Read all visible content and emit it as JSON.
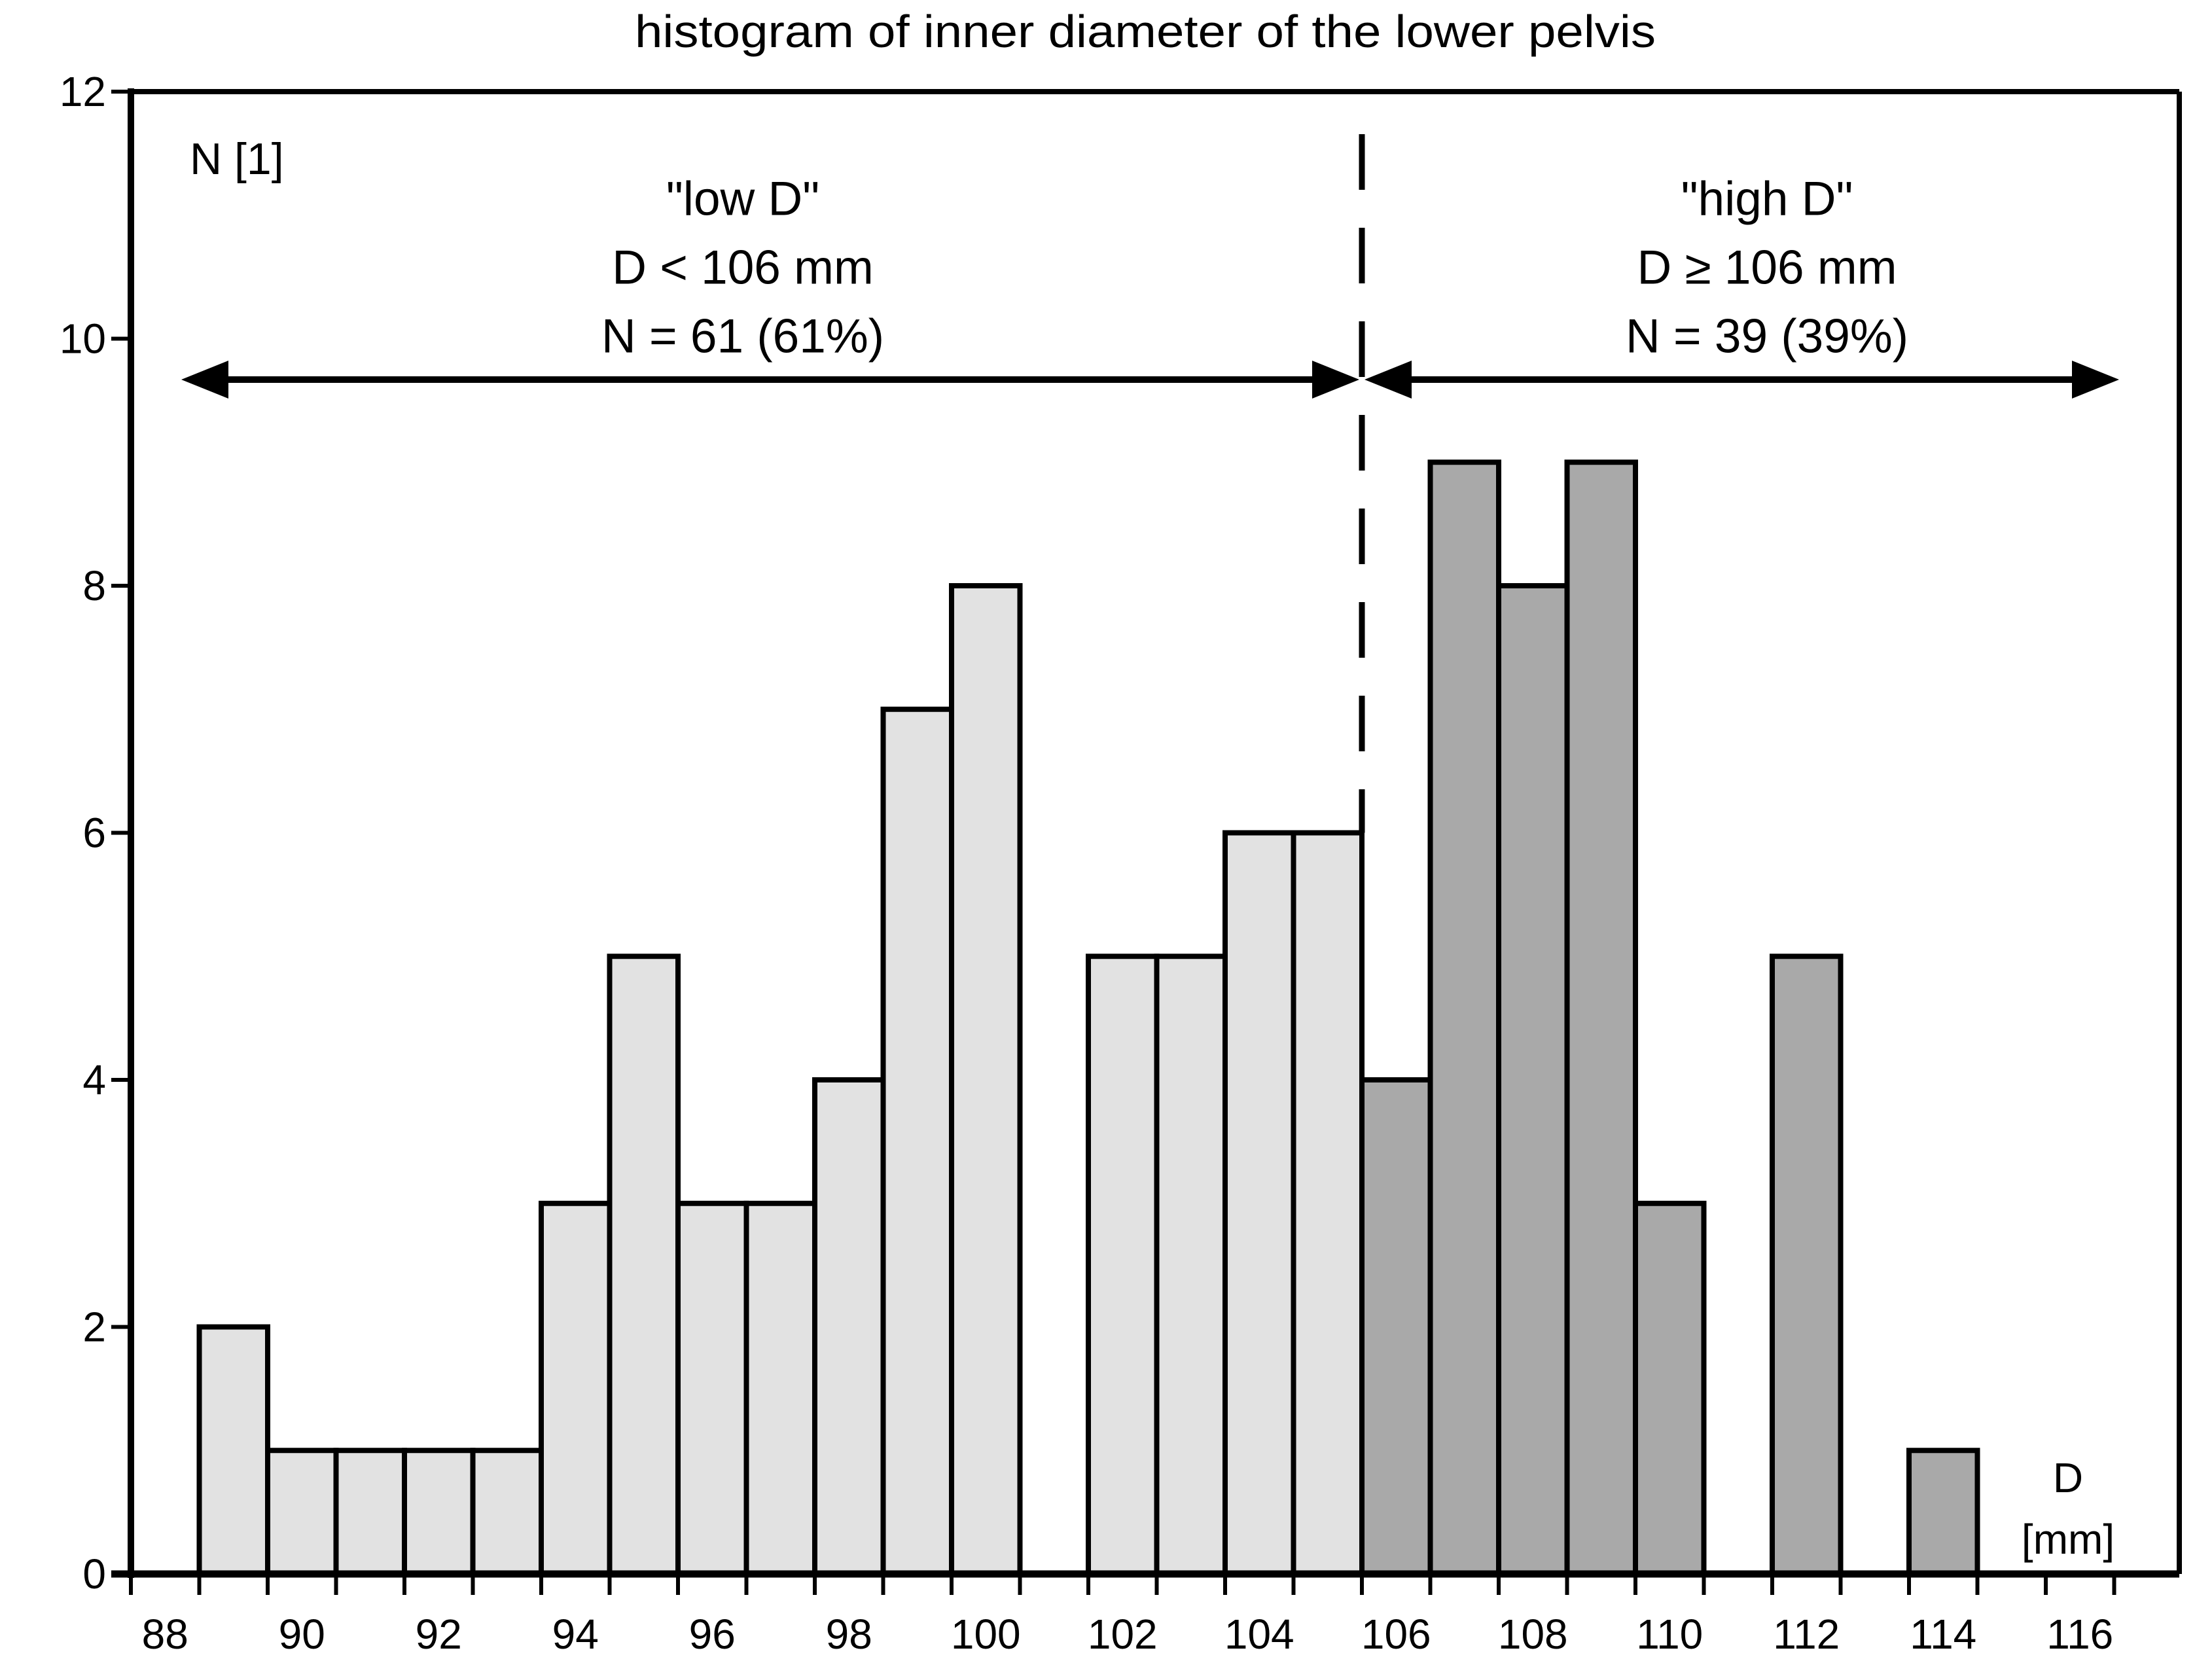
{
  "title": "histogram of inner diameter of the lower pelvis",
  "y_axis": {
    "label": "N [1]",
    "ticks": [
      0,
      2,
      4,
      6,
      8,
      10,
      12
    ],
    "min": 0,
    "max": 12
  },
  "x_axis": {
    "label_line1": "D",
    "label_line2": "[mm]",
    "tick_label_values": [
      88,
      90,
      92,
      94,
      96,
      98,
      100,
      102,
      104,
      106,
      108,
      110,
      112,
      114,
      116
    ],
    "min_boundary": 87.5,
    "max_boundary": 116.5,
    "bin_width_mm": 1
  },
  "threshold": {
    "value_mm": 105.5,
    "line_style": "dashed"
  },
  "annotations": {
    "low": {
      "title": "\"low D\"",
      "condition": "D < 106 mm",
      "count": "N = 61 (61%)"
    },
    "high": {
      "title": "\"high D\"",
      "condition": "D ≥ 106 mm",
      "count": "N = 39 (39%)"
    }
  },
  "colors": {
    "low_fill": "#e2e2e2",
    "high_fill": "#a9a9a9",
    "line": "#000000",
    "background": "#ffffff"
  },
  "chart_data": {
    "type": "bar",
    "title": "histogram of inner diameter of the lower pelvis",
    "xlabel": "D [mm]",
    "ylabel": "N [1]",
    "ylim": [
      0,
      12
    ],
    "xlim": [
      87.5,
      117.7
    ],
    "grid": false,
    "legend": "none",
    "threshold_mm": 105.5,
    "groups": {
      "low": {
        "label": "low D (D < 106 mm)",
        "total": 61,
        "percent": 61
      },
      "high": {
        "label": "high D (D ≥ 106 mm)",
        "total": 39,
        "percent": 39
      }
    },
    "bins": [
      {
        "d": 89,
        "n": 2,
        "group": "low"
      },
      {
        "d": 90,
        "n": 1,
        "group": "low"
      },
      {
        "d": 91,
        "n": 1,
        "group": "low"
      },
      {
        "d": 92,
        "n": 1,
        "group": "low"
      },
      {
        "d": 93,
        "n": 1,
        "group": "low"
      },
      {
        "d": 94,
        "n": 3,
        "group": "low"
      },
      {
        "d": 95,
        "n": 5,
        "group": "low"
      },
      {
        "d": 96,
        "n": 3,
        "group": "low"
      },
      {
        "d": 97,
        "n": 3,
        "group": "low"
      },
      {
        "d": 98,
        "n": 4,
        "group": "low"
      },
      {
        "d": 99,
        "n": 7,
        "group": "low"
      },
      {
        "d": 100,
        "n": 8,
        "group": "low"
      },
      {
        "d": 101,
        "n": 0,
        "group": "low"
      },
      {
        "d": 102,
        "n": 5,
        "group": "low"
      },
      {
        "d": 103,
        "n": 5,
        "group": "low"
      },
      {
        "d": 104,
        "n": 6,
        "group": "low"
      },
      {
        "d": 105,
        "n": 6,
        "group": "low"
      },
      {
        "d": 106,
        "n": 4,
        "group": "high"
      },
      {
        "d": 107,
        "n": 9,
        "group": "high"
      },
      {
        "d": 108,
        "n": 8,
        "group": "high"
      },
      {
        "d": 109,
        "n": 9,
        "group": "high"
      },
      {
        "d": 110,
        "n": 3,
        "group": "high"
      },
      {
        "d": 111,
        "n": 0,
        "group": "high"
      },
      {
        "d": 112,
        "n": 5,
        "group": "high"
      },
      {
        "d": 113,
        "n": 0,
        "group": "high"
      },
      {
        "d": 114,
        "n": 1,
        "group": "high"
      }
    ]
  }
}
